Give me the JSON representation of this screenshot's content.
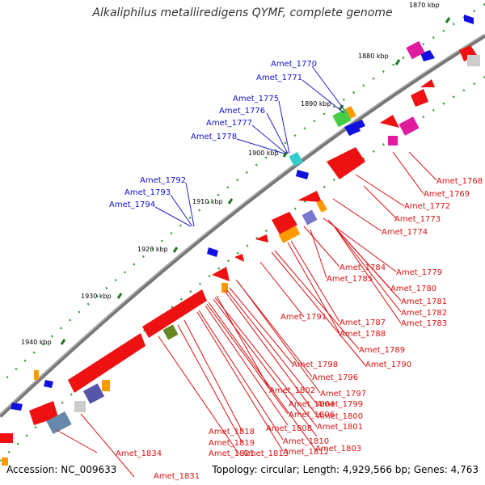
{
  "title": "Alkaliphilus metalliredigens QYMF, complete genome",
  "accession": "Accession: NC_009633",
  "topology": "Topology: circular; Length: 4,929,566 bp; Genes: 4,763",
  "tick_labels": [
    "1870 kbp",
    "1880 kbp",
    "1890 kbp",
    "1900 kbp",
    "1910 kbp",
    "1920 kbp",
    "1930 kbp",
    "1940 kbp"
  ],
  "blue_labels": [
    "Amet_1770",
    "Amet_1771",
    "Amet_1775",
    "Amet_1776",
    "Amet_1777",
    "Amet_1778",
    "Amet_1792",
    "Amet_1793",
    "Amet_1794"
  ],
  "red_labels": [
    "Amet_1768",
    "Amet_1769",
    "Amet_1772",
    "Amet_1773",
    "Amet_1774",
    "Amet_1779",
    "Amet_1780",
    "Amet_1781",
    "Amet_1782",
    "Amet_1783",
    "Amet_1784",
    "Amet_1785",
    "Amet_1787",
    "Amet_1788",
    "Amet_1789",
    "Amet_1790",
    "Amet_1791",
    "Amet_1796",
    "Amet_1797",
    "Amet_1798",
    "Amet_1799",
    "Amet_1800",
    "Amet_1801",
    "Amet_1802",
    "Amet_1803",
    "Amet_1804",
    "Amet_1806",
    "Amet_1808",
    "Amet_1810",
    "Amet_1812",
    "Amet_1813",
    "Amet_1818",
    "Amet_1819",
    "Amet_1821",
    "Amet_1831",
    "Amet_1834"
  ],
  "colors": {
    "backbone": "#777777",
    "forward_gene": "#ee1111",
    "reverse_gene": "#1111dd",
    "tick": "#228822",
    "blue_label": "#1010cc",
    "red_label": "#dd1111"
  }
}
